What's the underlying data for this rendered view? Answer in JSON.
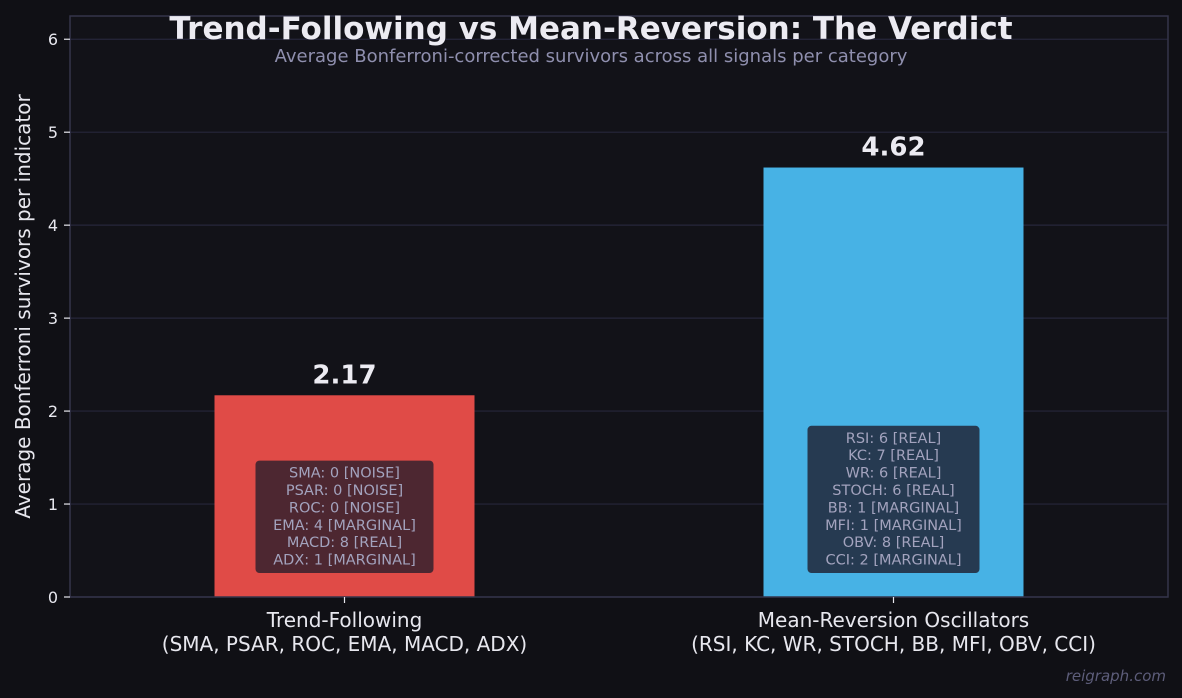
{
  "chart_data": {
    "type": "bar",
    "title": "Trend-Following vs Mean-Reversion: The Verdict",
    "subtitle": "Average Bonferroni-corrected survivors across all signals per category",
    "ylabel": "Average Bonferroni survivors per indicator",
    "xlabel": "",
    "ylim": [
      0,
      6.25
    ],
    "yticks": [
      0,
      1,
      2,
      3,
      4,
      5,
      6
    ],
    "grid": true,
    "categories": [
      {
        "label_line1": "Trend-Following",
        "label_line2": "(SMA, PSAR, ROC, EMA, MACD, ADX)",
        "value": 2.17,
        "value_label": "2.17",
        "color": "#e04b47",
        "breakdown": [
          "SMA: 0  [NOISE]",
          "PSAR: 0  [NOISE]",
          "ROC: 0  [NOISE]",
          "EMA: 4  [MARGINAL]",
          "MACD: 8  [REAL]",
          "ADX: 1  [MARGINAL]"
        ]
      },
      {
        "label_line1": "Mean-Reversion Oscillators",
        "label_line2": "(RSI, KC, WR, STOCH, BB, MFI, OBV, CCI)",
        "value": 4.62,
        "value_label": "4.62",
        "color": "#47b2e5",
        "breakdown": [
          "RSI: 6  [REAL]",
          "KC: 7  [REAL]",
          "WR: 6  [REAL]",
          "STOCH: 6  [REAL]",
          "BB: 1  [MARGINAL]",
          "MFI: 1  [MARGINAL]",
          "OBV: 8  [REAL]",
          "CCI: 2  [MARGINAL]"
        ]
      }
    ]
  },
  "watermark": "reigraph.com",
  "colors": {
    "background": "#101015",
    "plot_background": "#121218",
    "grid": "#26263a",
    "axis_frame": "#34344a",
    "legend_box_trend": "#452530",
    "legend_box_reversion": "#253449"
  }
}
